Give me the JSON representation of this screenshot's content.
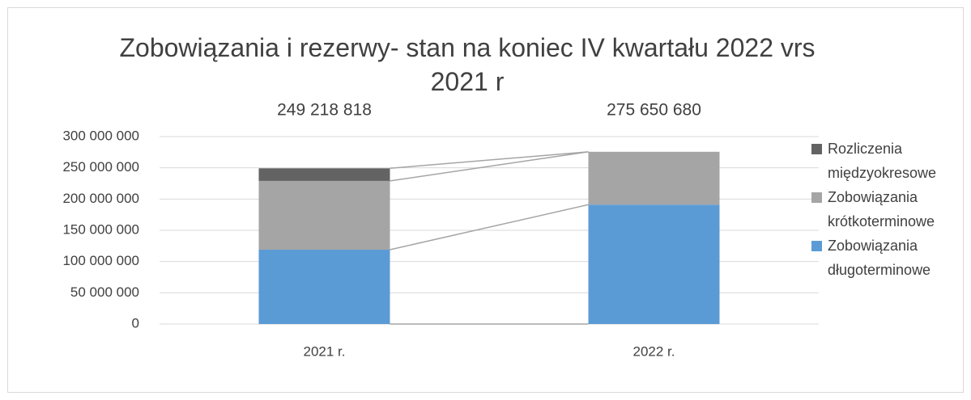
{
  "chart_data": {
    "type": "stacked-bar",
    "title": "Zobowiązania i rezerwy- stan na koniec IV kwartału 2022 vrs 2021 r",
    "categories": [
      "2021 r.",
      "2022 r."
    ],
    "series": [
      {
        "name": "Zobowiązania długoterminowe",
        "color": "#5b9bd5",
        "values": [
          119000000,
          191000000
        ]
      },
      {
        "name": "Zobowiązania krótkoterminowe",
        "color": "#a5a5a5",
        "values": [
          110000000,
          84650680
        ]
      },
      {
        "name": "Rozliczenia międzyokresowe",
        "color": "#636363",
        "values": [
          20218818,
          0
        ]
      }
    ],
    "totals": [
      249218818,
      275650680
    ],
    "total_labels": [
      "249 218 818",
      "275 650 680"
    ],
    "ylim": [
      0,
      300000000
    ],
    "yticks": [
      0,
      {
        "value": 50000000,
        "label": "50 000 000"
      },
      {
        "value": 100000000,
        "label": "100 000 000"
      },
      {
        "value": 150000000,
        "label": "150 000 000"
      },
      {
        "value": 200000000,
        "label": "200 000 000"
      },
      {
        "value": 250000000,
        "label": "250 000 000"
      },
      {
        "value": 300000000,
        "label": "300 000 000"
      }
    ],
    "grid": true,
    "legend": "right"
  }
}
